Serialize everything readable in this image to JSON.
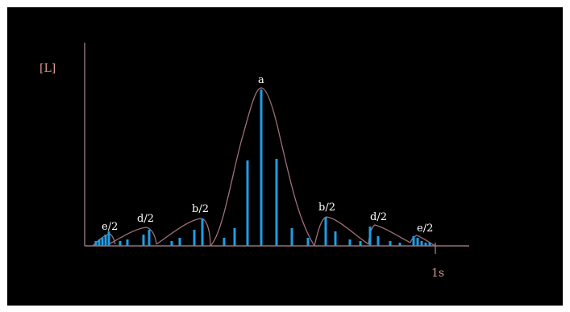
{
  "diagram": {
    "y_axis_label": "[L]",
    "x_axis_label": "1s",
    "peak_labels": [
      "a",
      "b/2",
      "b/2",
      "d/2",
      "d/2",
      "e/2",
      "e/2"
    ],
    "colors": {
      "background": "#000000",
      "axis": "#b08a94",
      "envelope": "#a07078",
      "bar": "#1e9ee6",
      "text": "#ffffff",
      "axis_label": "#d89a8e"
    }
  }
}
